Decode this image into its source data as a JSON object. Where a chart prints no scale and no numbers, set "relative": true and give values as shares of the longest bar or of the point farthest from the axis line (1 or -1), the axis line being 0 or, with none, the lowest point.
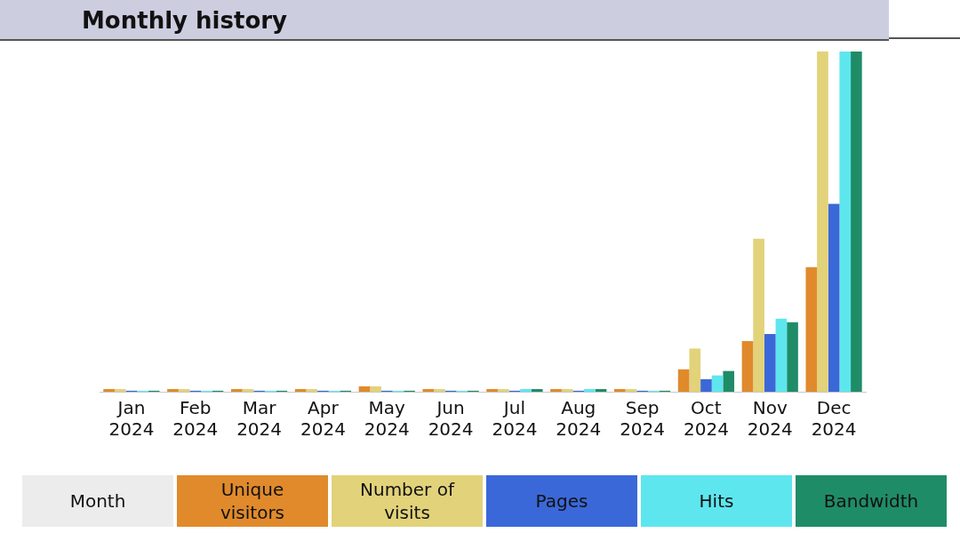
{
  "chart_data": {
    "type": "bar",
    "title": "Monthly history",
    "relative": true,
    "legend": "bottom",
    "legend_title": "Month",
    "grid": false,
    "categories": [
      "Jan 2024",
      "Feb 2024",
      "Mar 2024",
      "Apr 2024",
      "May 2024",
      "Jun 2024",
      "Jul 2024",
      "Aug 2024",
      "Sep 2024",
      "Oct 2024",
      "Nov 2024",
      "Dec 2024"
    ],
    "series": [
      {
        "name": "Unique visitors",
        "color": "#e08a2c",
        "values": [
          0.008,
          0.008,
          0.008,
          0.008,
          0.016,
          0.008,
          0.008,
          0.008,
          0.008,
          0.066,
          0.149,
          0.366
        ]
      },
      {
        "name": "Number of visits",
        "color": "#e2d27a",
        "values": [
          0.008,
          0.008,
          0.008,
          0.008,
          0.016,
          0.008,
          0.008,
          0.008,
          0.008,
          0.127,
          0.45,
          1
        ]
      },
      {
        "name": "Pages",
        "color": "#3a68d8",
        "values": [
          0.003,
          0.003,
          0.003,
          0.003,
          0.003,
          0.003,
          0.003,
          0.003,
          0.003,
          0.037,
          0.17,
          0.552
        ]
      },
      {
        "name": "Hits",
        "color": "#5ee6ee",
        "values": [
          0.003,
          0.003,
          0.003,
          0.003,
          0.003,
          0.003,
          0.008,
          0.008,
          0.003,
          0.048,
          0.215,
          1
        ]
      },
      {
        "name": "Bandwidth",
        "color": "#1f8c68",
        "values": [
          0.003,
          0.003,
          0.003,
          0.003,
          0.003,
          0.003,
          0.008,
          0.008,
          0.003,
          0.061,
          0.204,
          1
        ]
      }
    ]
  }
}
